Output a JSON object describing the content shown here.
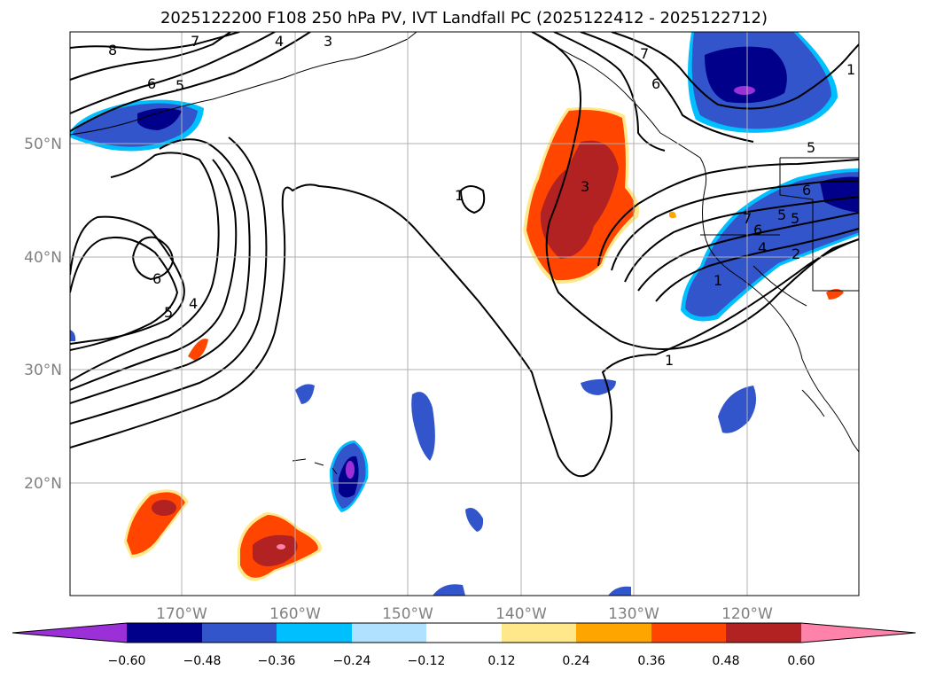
{
  "title": "2025122200 F108 250 hPa PV, IVT Landfall PC (2025122412 - 2025122712)",
  "lon_labels": [
    "170°W",
    "160°W",
    "150°W",
    "140°W",
    "130°W",
    "120°W"
  ],
  "lat_labels": [
    "50°N",
    "40°N",
    "30°N",
    "20°N"
  ],
  "colorbar": {
    "tick_labels": [
      "−0.60",
      "−0.48",
      "−0.36",
      "−0.24",
      "−0.12",
      "0.12",
      "0.24",
      "0.36",
      "0.48",
      "0.60"
    ],
    "colors": [
      "#9b30d8",
      "#00008b",
      "#3355cc",
      "#00bfff",
      "#b0e2ff",
      "#ffffff",
      "#ffe88a",
      "#ffa500",
      "#ff4500",
      "#b22222",
      "#ff82ab"
    ]
  },
  "contour_labels": [
    "8",
    "7",
    "6",
    "5",
    "4",
    "3",
    "1",
    "7",
    "6",
    "5",
    "1",
    "6",
    "5",
    "4",
    "6",
    "5",
    "3",
    "7",
    "6",
    "5",
    "4",
    "2",
    "1",
    "1"
  ]
}
